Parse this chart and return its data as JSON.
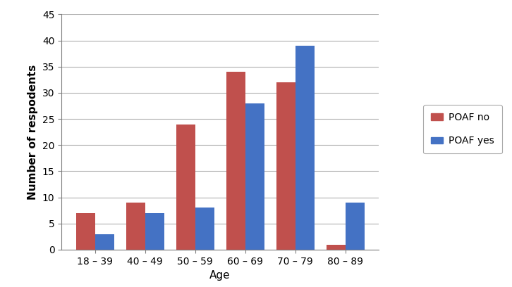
{
  "categories": [
    "18 – 39",
    "40 – 49",
    "50 – 59",
    "60 – 69",
    "70 – 79",
    "80 – 89"
  ],
  "poaf_no": [
    7,
    9,
    24,
    34,
    32,
    1
  ],
  "poaf_yes": [
    3,
    7,
    8,
    28,
    39,
    9
  ],
  "color_no": "#C0504D",
  "color_yes": "#4472C4",
  "ylabel": "Number of respodents",
  "xlabel": "Age",
  "ylim": [
    0,
    45
  ],
  "yticks": [
    0,
    5,
    10,
    15,
    20,
    25,
    30,
    35,
    40,
    45
  ],
  "legend_labels": [
    "POAF no",
    "POAF yes"
  ],
  "bar_width": 0.38,
  "background_color": "#ffffff",
  "grid_color": "#b0b0b0",
  "figsize": [
    7.26,
    4.08
  ],
  "dpi": 100
}
